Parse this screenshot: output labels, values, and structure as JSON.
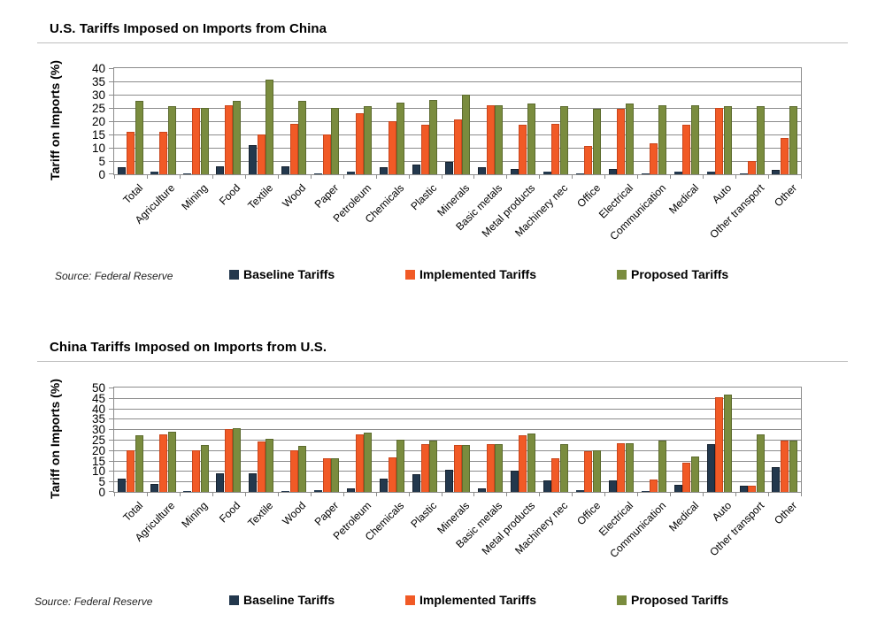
{
  "page": {
    "background": "#FFFFFF"
  },
  "colors": {
    "baseline": "#23384D",
    "baseline_border": "#16222F",
    "implemented": "#F15A26",
    "implemented_border": "#C9451B",
    "proposed": "#7A8C3E",
    "proposed_border": "#5C6B2E",
    "gridline": "#8C8C8C",
    "divider": "#BDBDBD"
  },
  "chart_data": [
    {
      "type": "bar",
      "title": "U.S. Tariffs Imposed on Imports from China",
      "ylabel": "Tariff on Imports (%)",
      "source": "Source: Federal Reserve",
      "ylim": [
        0,
        40
      ],
      "ytick_step": 5,
      "yticks": [
        0,
        5,
        10,
        15,
        20,
        25,
        30,
        35,
        40
      ],
      "grid": true,
      "legend_position": "bottom",
      "categories": [
        "Total",
        "Agriculture",
        "Mining",
        "Food",
        "Textile",
        "Wood",
        "Paper",
        "Petroleum",
        "Chemicals",
        "Plastic",
        "Minerals",
        "Basic metals",
        "Metal products",
        "Machinery nec",
        "Office",
        "Electrical",
        "Communication",
        "Medical",
        "Auto",
        "Other transport",
        "Other"
      ],
      "series": [
        {
          "name": "Baseline Tariffs",
          "color": "#23384D",
          "values": [
            2.5,
            1,
            0.3,
            3,
            11,
            3,
            0.3,
            1,
            2.5,
            3.5,
            4.5,
            2.5,
            2,
            1,
            0.3,
            2,
            0.3,
            1,
            1,
            0.3,
            1.5
          ]
        },
        {
          "name": "Implemented Tariffs",
          "color": "#F15A26",
          "values": [
            16,
            16,
            25,
            26,
            15,
            19,
            15,
            23,
            20,
            18.5,
            20.5,
            26,
            18.5,
            19,
            10.5,
            24.5,
            11.5,
            18.5,
            25,
            5,
            13.5
          ]
        },
        {
          "name": "Proposed Tariffs",
          "color": "#7A8C3E",
          "values": [
            27.5,
            25.5,
            25,
            27.5,
            35.5,
            27.5,
            25,
            25.5,
            27,
            28,
            30,
            26,
            26.5,
            25.5,
            24.5,
            26.5,
            26,
            26,
            25.5,
            25.5,
            25.5
          ]
        }
      ]
    },
    {
      "type": "bar",
      "title": "China Tariffs Imposed on Imports from U.S.",
      "ylabel": "Tariff on Imports (%)",
      "source": "Source: Federal Reserve",
      "ylim": [
        0,
        50
      ],
      "ytick_step": 5,
      "yticks": [
        0,
        5,
        10,
        15,
        20,
        25,
        30,
        35,
        40,
        45,
        50
      ],
      "grid": true,
      "legend_position": "bottom",
      "categories": [
        "Total",
        "Agriculture",
        "Mining",
        "Food",
        "Textile",
        "Wood",
        "Paper",
        "Petroleum",
        "Chemicals",
        "Plastic",
        "Minerals",
        "Basic metals",
        "Metal products",
        "Machinery nec",
        "Office",
        "Electrical",
        "Communication",
        "Medical",
        "Auto",
        "Other transport",
        "Other"
      ],
      "series": [
        {
          "name": "Baseline Tariffs",
          "color": "#23384D",
          "values": [
            6.5,
            4,
            0.5,
            9,
            9,
            0.3,
            1,
            1.5,
            6.5,
            8.5,
            10.5,
            1.5,
            10,
            5.5,
            1,
            5.5,
            0.3,
            3.5,
            23,
            3,
            12
          ]
        },
        {
          "name": "Implemented Tariffs",
          "color": "#F15A26",
          "values": [
            20,
            27.5,
            20,
            30,
            24,
            20,
            16,
            27.5,
            16.5,
            23,
            22.5,
            23,
            27,
            16,
            19.5,
            23.5,
            6,
            14,
            45.5,
            3,
            24.5
          ]
        },
        {
          "name": "Proposed Tariffs",
          "color": "#7A8C3E",
          "values": [
            27,
            29,
            22.5,
            30.5,
            25.5,
            22,
            16,
            28.5,
            25,
            24.5,
            22.5,
            23,
            28,
            23,
            20,
            23.5,
            24.5,
            17,
            46.5,
            27.5,
            24.5
          ]
        }
      ]
    }
  ]
}
